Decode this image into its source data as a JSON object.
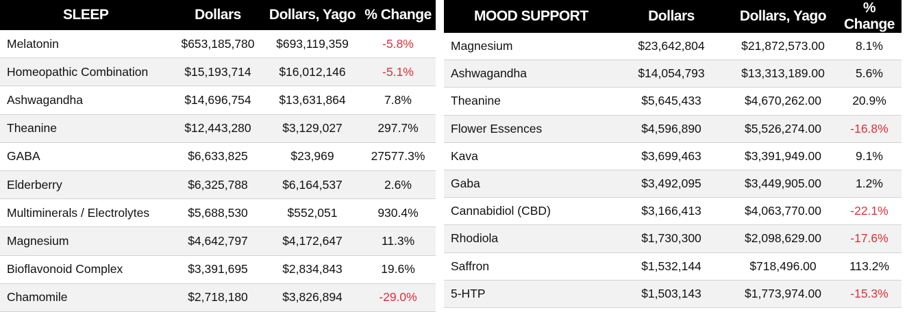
{
  "sleep": {
    "title": "SLEEP",
    "headers": [
      "Dollars",
      "Dollars, Yago",
      "% Change"
    ],
    "rows": [
      {
        "name": "Melatonin",
        "dollars": "$653,185,780",
        "yago": "$693,119,359",
        "change": "-5.8%"
      },
      {
        "name": "Homeopathic Combination",
        "dollars": "$15,193,714",
        "yago": "$16,012,146",
        "change": "-5.1%"
      },
      {
        "name": "Ashwagandha",
        "dollars": "$14,696,754",
        "yago": "$13,631,864",
        "change": "7.8%"
      },
      {
        "name": "Theanine",
        "dollars": "$12,443,280",
        "yago": "$3,129,027",
        "change": "297.7%"
      },
      {
        "name": "GABA",
        "dollars": "$6,633,825",
        "yago": "$23,969",
        "change": "27577.3%"
      },
      {
        "name": "Elderberry",
        "dollars": "$6,325,788",
        "yago": "$6,164,537",
        "change": "2.6%"
      },
      {
        "name": "Multiminerals / Electrolytes",
        "dollars": "$5,688,530",
        "yago": "$552,051",
        "change": "930.4%"
      },
      {
        "name": "Magnesium",
        "dollars": "$4,642,797",
        "yago": "$4,172,647",
        "change": "11.3%"
      },
      {
        "name": "Bioflavonoid Complex",
        "dollars": "$3,391,695",
        "yago": "$2,834,843",
        "change": "19.6%"
      },
      {
        "name": "Chamomile",
        "dollars": "$2,718,180",
        "yago": "$3,826,894",
        "change": "-29.0%"
      }
    ]
  },
  "mood": {
    "title": "MOOD SUPPORT",
    "headers": [
      "Dollars",
      "Dollars, Yago",
      "% Change"
    ],
    "rows": [
      {
        "name": "Magnesium",
        "dollars": "$23,642,804",
        "yago": "$21,872,573.00",
        "change": "8.1%"
      },
      {
        "name": "Ashwagandha",
        "dollars": "$14,054,793",
        "yago": "$13,313,189.00",
        "change": "5.6%"
      },
      {
        "name": "Theanine",
        "dollars": "$5,645,433",
        "yago": "$4,670,262.00",
        "change": "20.9%"
      },
      {
        "name": "Flower Essences",
        "dollars": "$4,596,890",
        "yago": "$5,526,274.00",
        "change": "-16.8%"
      },
      {
        "name": "Kava",
        "dollars": "$3,699,463",
        "yago": "$3,391,949.00",
        "change": "9.1%"
      },
      {
        "name": "Gaba",
        "dollars": "$3,492,095",
        "yago": "$3,449,905.00",
        "change": "1.2%"
      },
      {
        "name": "Cannabidiol (CBD)",
        "dollars": "$3,166,413",
        "yago": "$4,063,770.00",
        "change": "-22.1%"
      },
      {
        "name": "Rhodiola",
        "dollars": "$1,730,300",
        "yago": "$2,098,629.00",
        "change": "-17.6%"
      },
      {
        "name": "Saffron",
        "dollars": "$1,532,144",
        "yago": "$718,496.00",
        "change": "113.2%"
      },
      {
        "name": "5-HTP",
        "dollars": "$1,503,143",
        "yago": "$1,773,974.00",
        "change": "-15.3%"
      }
    ]
  },
  "colors": {
    "header_bg": "#000000",
    "negative": "#e0303a",
    "row_alt": "#f2f2f2"
  }
}
